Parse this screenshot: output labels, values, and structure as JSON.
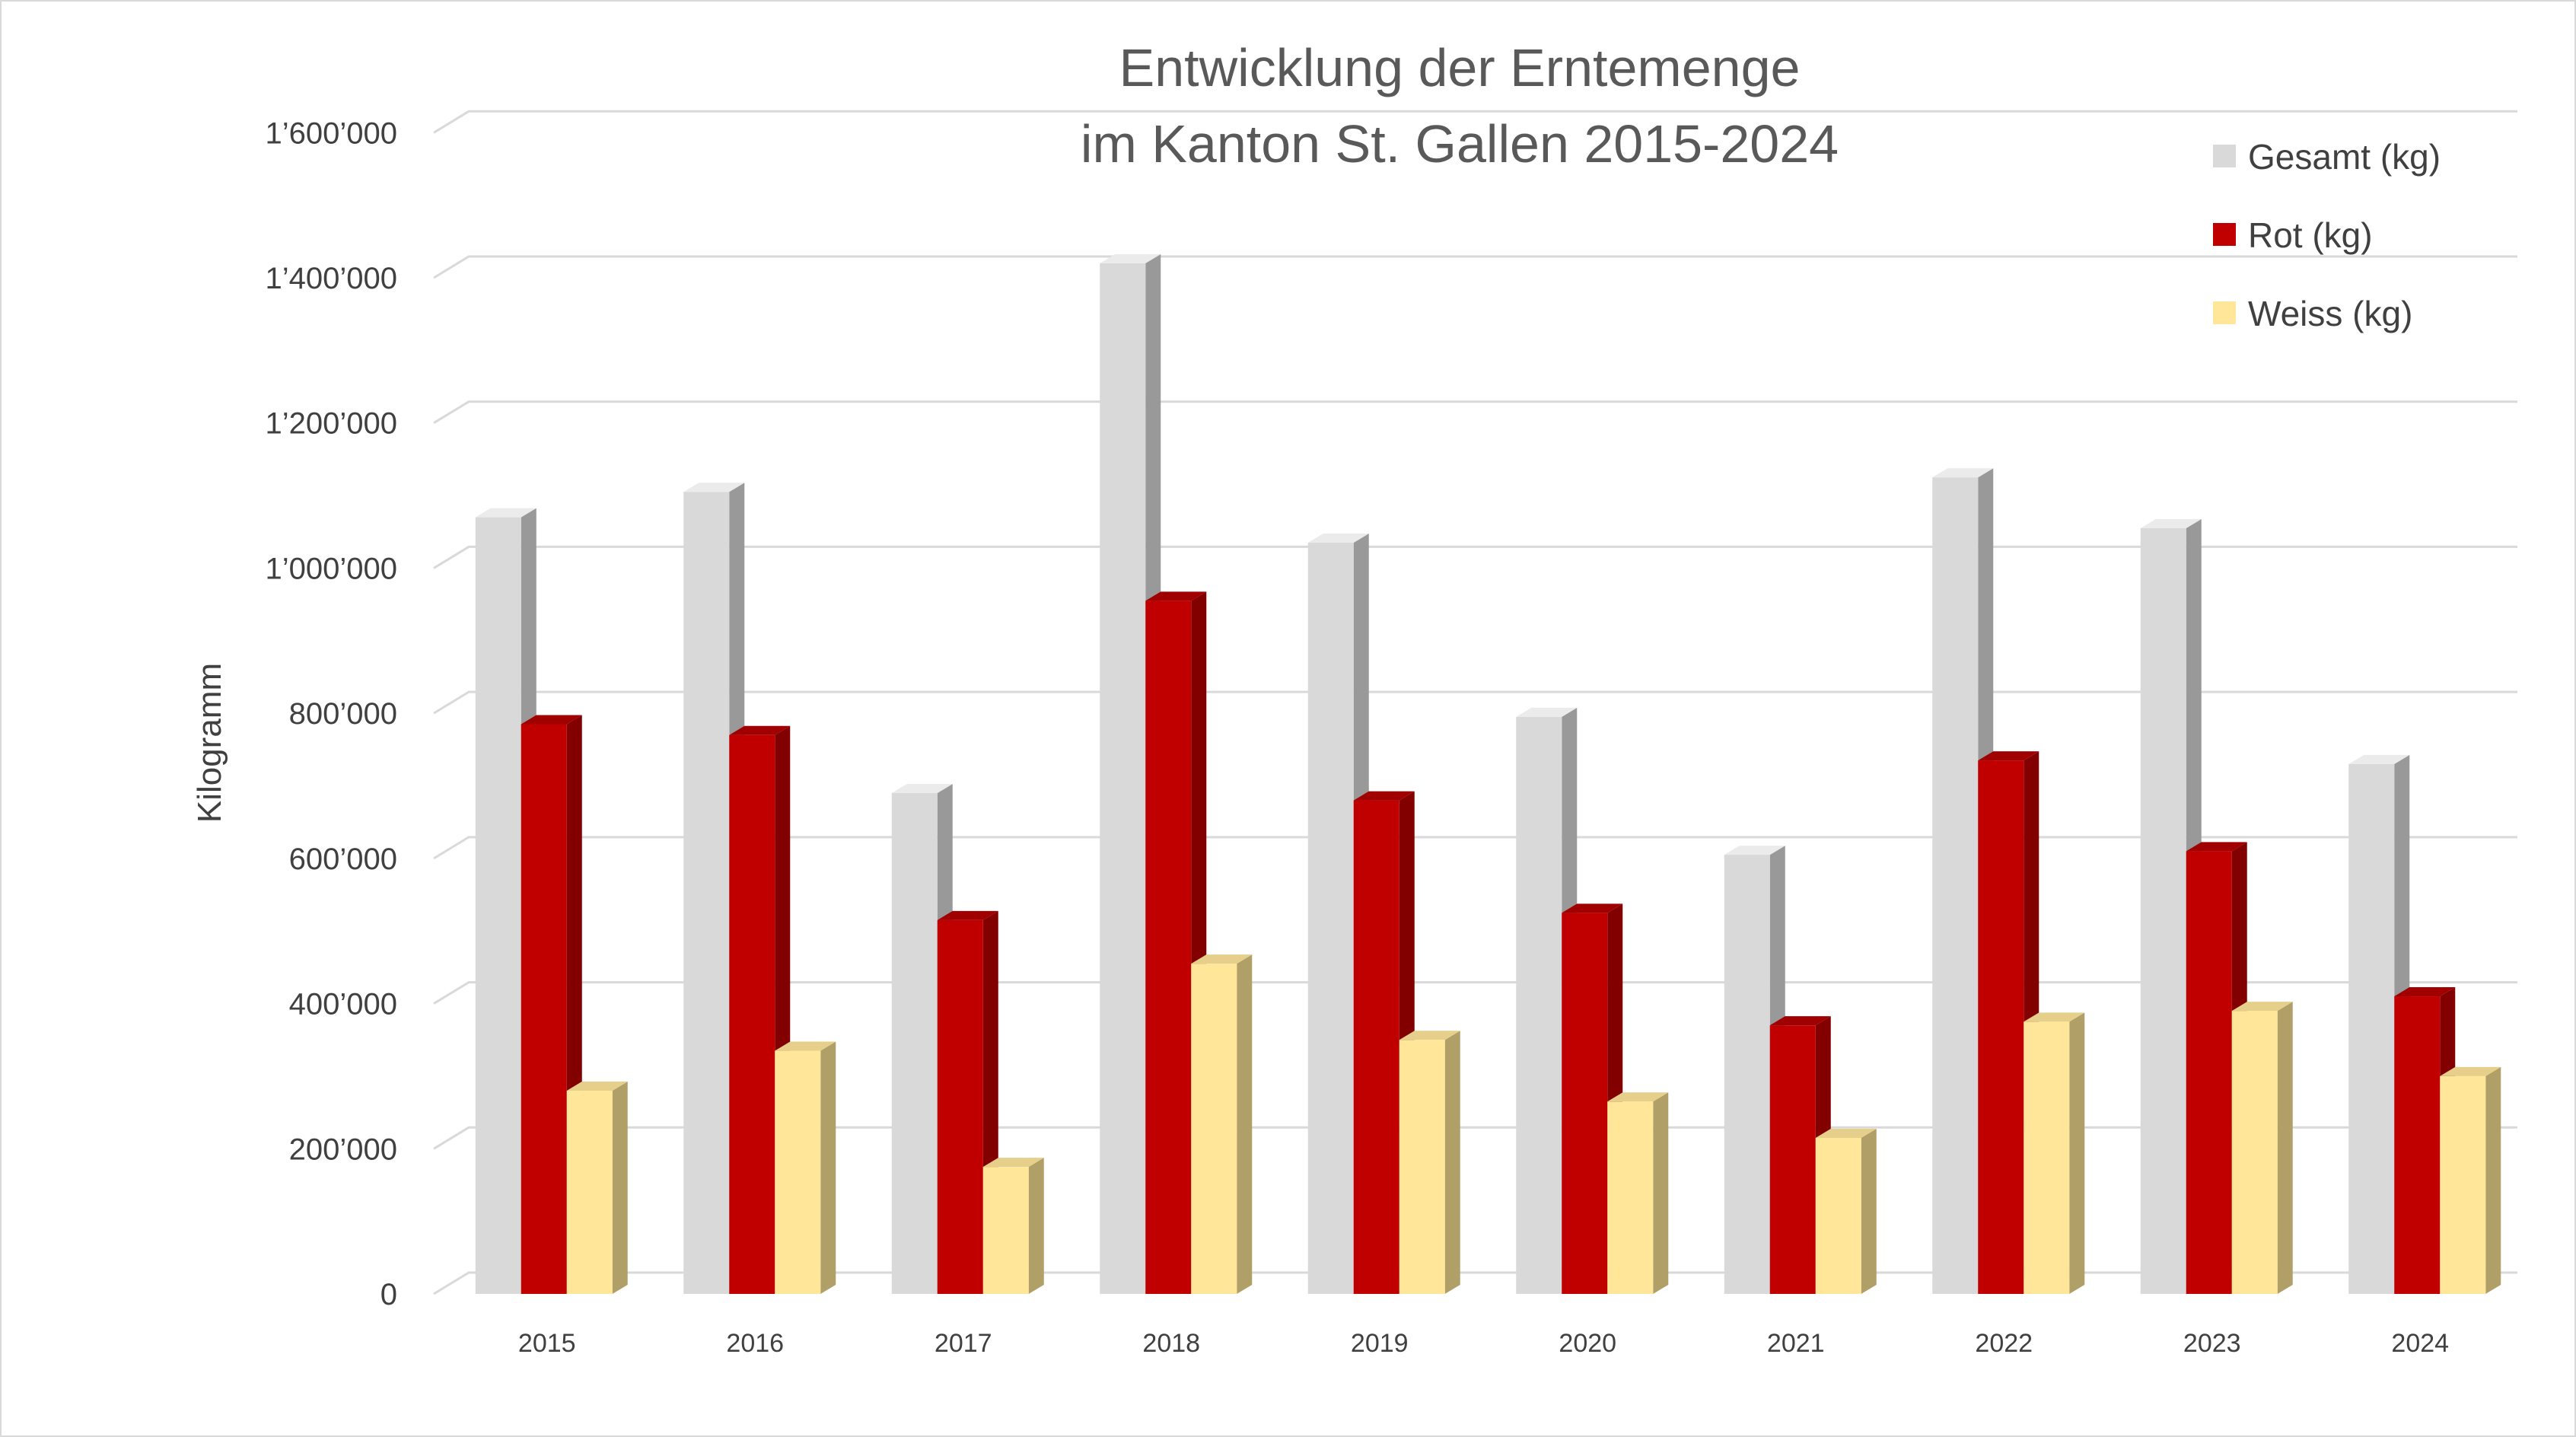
{
  "chart_data": {
    "type": "bar",
    "title_lines": [
      "Entwicklung der Erntemenge",
      "im Kanton St. Gallen 2015-2024"
    ],
    "ylabel": "Kilogramm",
    "xlabel": "",
    "ylim": [
      0,
      1600000
    ],
    "yticks": [
      0,
      200000,
      400000,
      600000,
      800000,
      1000000,
      1200000,
      1400000,
      1600000
    ],
    "ytick_labels": [
      "0",
      "200’000",
      "400’000",
      "600’000",
      "800’000",
      "1’000’000",
      "1’200’000",
      "1’400’000",
      "1’600’000"
    ],
    "categories": [
      "2015",
      "2016",
      "2017",
      "2018",
      "2019",
      "2020",
      "2021",
      "2022",
      "2023",
      "2024"
    ],
    "series": [
      {
        "name": "Gesamt (kg)",
        "color": "#d9d9d9",
        "side_color": "#999999",
        "top_color": "#ebebeb",
        "values": [
          1070000,
          1105000,
          690000,
          1420000,
          1035000,
          795000,
          605000,
          1125000,
          1055000,
          730000
        ]
      },
      {
        "name": "Rot (kg)",
        "color": "#c00000",
        "side_color": "#820000",
        "top_color": "#a00000",
        "values": [
          785000,
          770000,
          515000,
          955000,
          680000,
          525000,
          370000,
          735000,
          610000,
          410000
        ]
      },
      {
        "name": "Weiss (kg)",
        "color": "#ffe699",
        "side_color": "#b0a068",
        "top_color": "#e6cf8a",
        "values": [
          280000,
          335000,
          175000,
          455000,
          350000,
          265000,
          215000,
          375000,
          390000,
          300000
        ]
      }
    ],
    "grid": true,
    "legend_position": "top-right",
    "style": "3d-clustered-column"
  }
}
